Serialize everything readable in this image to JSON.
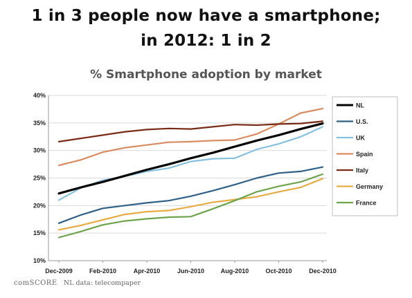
{
  "headline": {
    "line1": "1 in 3 people now have a smartphone;",
    "line2": "in 2012: 1 in 2"
  },
  "footer": {
    "brand": "comSCORE",
    "note": "NL data: telecompaper"
  },
  "chart_data": {
    "type": "line",
    "title": "% Smartphone adoption by market",
    "xlabel": "",
    "ylabel": "",
    "x": [
      "Dec-2009",
      "Jan-2010",
      "Feb-2010",
      "Mar-2010",
      "Apr-2010",
      "May-2010",
      "Jun-2010",
      "Jul-2010",
      "Aug-2010",
      "Sep-2010",
      "Oct-2010",
      "Nov-2010",
      "Dec-2010"
    ],
    "x_tick_labels": [
      "Dec-2009",
      "Feb-2010",
      "Apr-2010",
      "Jun-2010",
      "Aug-2010",
      "Oct-2010",
      "Dec-2010"
    ],
    "y_ticks": [
      "10%",
      "15%",
      "20%",
      "25%",
      "30%",
      "35%",
      "40%"
    ],
    "ylim": [
      10,
      40
    ],
    "grid": "horizontal",
    "legend_position": "right",
    "series": [
      {
        "name": "NL",
        "color": "#000000",
        "values": [
          22.2,
          23.3,
          24.3,
          25.4,
          26.5,
          27.5,
          28.6,
          29.6,
          30.7,
          31.8,
          32.8,
          33.9,
          34.9
        ],
        "width": 3.2
      },
      {
        "name": "U.S.",
        "color": "#2e5f86",
        "values": [
          16.8,
          18.3,
          19.5,
          20.0,
          20.5,
          20.9,
          21.7,
          22.7,
          23.8,
          25.0,
          25.9,
          26.2,
          27.0
        ],
        "width": 2.2
      },
      {
        "name": "UK",
        "color": "#86c0df",
        "values": [
          21.0,
          23.2,
          24.6,
          25.3,
          26.2,
          26.8,
          28.0,
          28.5,
          28.6,
          30.2,
          31.2,
          32.5,
          34.3
        ],
        "width": 2.2
      },
      {
        "name": "Spain",
        "color": "#d98a5f",
        "values": [
          27.3,
          28.3,
          29.7,
          30.5,
          31.0,
          31.5,
          31.6,
          31.8,
          31.9,
          33.0,
          34.8,
          36.8,
          37.6
        ],
        "width": 2.2
      },
      {
        "name": "Italy",
        "color": "#7a2a14",
        "values": [
          31.6,
          32.2,
          32.8,
          33.4,
          33.8,
          34.0,
          33.9,
          34.3,
          34.7,
          34.6,
          34.8,
          34.9,
          35.3
        ],
        "width": 2.2
      },
      {
        "name": "Germany",
        "color": "#e8ac45",
        "values": [
          15.6,
          16.4,
          17.4,
          18.4,
          18.9,
          19.1,
          19.8,
          20.6,
          21.1,
          21.6,
          22.5,
          23.3,
          24.9
        ],
        "width": 2.2
      },
      {
        "name": "France",
        "color": "#6da34a",
        "values": [
          14.2,
          15.3,
          16.5,
          17.2,
          17.6,
          17.9,
          18.0,
          19.4,
          20.9,
          22.5,
          23.5,
          24.3,
          25.7
        ],
        "width": 2.2
      }
    ]
  }
}
